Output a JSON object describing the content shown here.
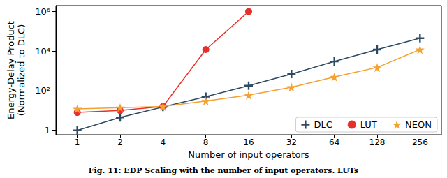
{
  "chart_data": {
    "type": "line",
    "title": "Fig. 11: EDP Scaling with the number of input operators. LUTs",
    "x_label": "Number of input operators",
    "y_label": "Energy-Delay Product\n(Normalized to DLC)",
    "categories": [
      "1",
      "2",
      "4",
      "8",
      "16",
      "32",
      "64",
      "128",
      "256"
    ],
    "series": [
      {
        "name": "DLC",
        "color": "#2e4a62",
        "marker": "plus",
        "values": [
          1,
          4.5,
          15,
          50,
          180,
          700,
          3000,
          12000,
          45000
        ]
      },
      {
        "name": "LUT",
        "color": "#e8302a",
        "marker": "circle",
        "values": [
          8,
          10,
          16,
          12000,
          1000000,
          null,
          null,
          null,
          null
        ]
      },
      {
        "name": "NEON",
        "color": "#f5a030",
        "marker": "star",
        "values": [
          12,
          14,
          16,
          30,
          60,
          150,
          500,
          1500,
          12000
        ]
      }
    ],
    "log": "y",
    "ylim": [
      0.6,
      2000000
    ],
    "yticks": [
      1,
      {
        "value": 100,
        "label": "10²"
      },
      {
        "value": 10000,
        "label": "10⁴"
      },
      {
        "value": 1000000,
        "label": "10⁶"
      }
    ],
    "grid": false,
    "legend": "lower right"
  }
}
